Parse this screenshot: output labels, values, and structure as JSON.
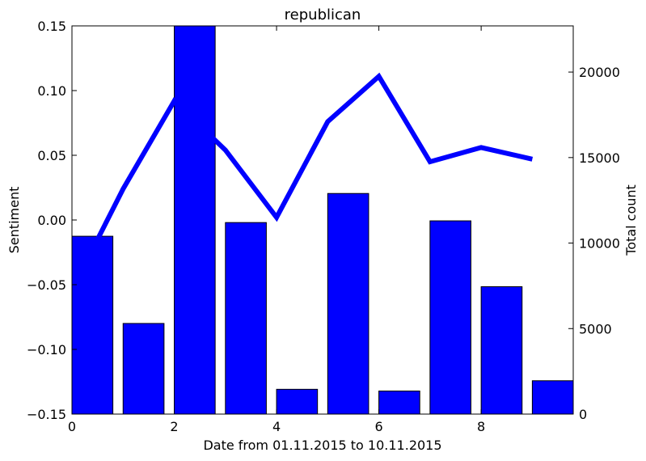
{
  "chart_data": {
    "type": "bar",
    "title": "republican",
    "xlabel": "Date from 01.11.2015 to 10.11.2015",
    "ylabel_left": "Sentiment",
    "ylabel_right": "Total count",
    "xlim": [
      0,
      9.8
    ],
    "ylim_left": [
      -0.15,
      0.15
    ],
    "ylim_right": [
      0,
      22700
    ],
    "x_ticks": [
      0,
      2,
      4,
      6,
      8
    ],
    "x_tick_labels": [
      "0",
      "2",
      "4",
      "6",
      "8"
    ],
    "y_left_ticks": [
      -0.15,
      -0.1,
      -0.05,
      0.0,
      0.05,
      0.1,
      0.15
    ],
    "y_left_tick_labels": [
      "−0.15",
      "−0.10",
      "−0.05",
      "0.00",
      "0.05",
      "0.10",
      "0.15"
    ],
    "y_right_ticks": [
      0,
      5000,
      10000,
      15000,
      20000
    ],
    "y_right_tick_labels": [
      "0",
      "5000",
      "10000",
      "15000",
      "20000"
    ],
    "bars": {
      "axis": "right",
      "color": "#0000ff",
      "bar_width": 0.8,
      "x": [
        0,
        1,
        2,
        3,
        4,
        5,
        6,
        7,
        8,
        9
      ],
      "values": [
        10400,
        5300,
        22700,
        11200,
        1450,
        12900,
        1350,
        11300,
        7450,
        1950
      ]
    },
    "line": {
      "axis": "left",
      "color": "#0000ff",
      "x": [
        0.5,
        1,
        2,
        3,
        4,
        5,
        6,
        7,
        8,
        9
      ],
      "values": [
        -0.015,
        0.024,
        0.092,
        0.054,
        0.002,
        0.076,
        0.111,
        0.045,
        0.056,
        0.047
      ]
    }
  }
}
